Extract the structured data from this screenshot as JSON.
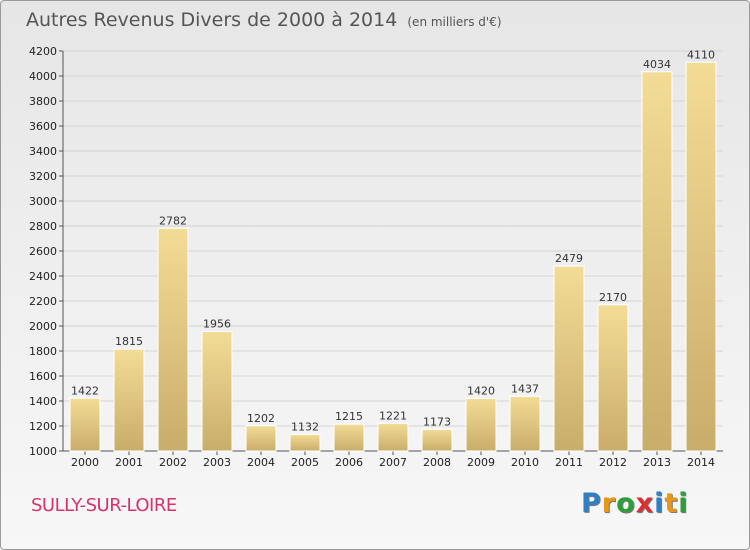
{
  "header": {
    "title": "Autres Revenus Divers de 2000 à 2014",
    "subtitle": "(en milliers d'€)"
  },
  "footer": {
    "commune": "SULLY-SUR-LOIRE",
    "logo_letters": [
      "P",
      "r",
      "o",
      "x",
      "i",
      "t",
      "i"
    ],
    "logo_colors": [
      "#2f7fc1",
      "#e8961c",
      "#2f9e3a",
      "#d92f2f",
      "#2f7fc1",
      "#e8961c",
      "#2f9e3a"
    ]
  },
  "chart_data": {
    "type": "bar",
    "title": "Autres Revenus Divers de 2000 à 2014",
    "subtitle": "(en milliers d'€)",
    "categories": [
      "2000",
      "2001",
      "2002",
      "2003",
      "2004",
      "2005",
      "2006",
      "2007",
      "2008",
      "2009",
      "2010",
      "2011",
      "2012",
      "2013",
      "2014"
    ],
    "values": [
      1422,
      1815,
      2782,
      1956,
      1202,
      1132,
      1215,
      1221,
      1173,
      1420,
      1437,
      2479,
      2170,
      4034,
      4110
    ],
    "ylim": [
      1000,
      4200
    ],
    "yticks": [
      1000,
      1200,
      1400,
      1600,
      1800,
      2000,
      2200,
      2400,
      2600,
      2800,
      3000,
      3200,
      3400,
      3600,
      3800,
      4000,
      4200
    ],
    "grid": true,
    "colors": {
      "bar_light": "#f3dc96",
      "bar_dark": "#c9ad6a",
      "grid": "#d4d4d4"
    }
  }
}
